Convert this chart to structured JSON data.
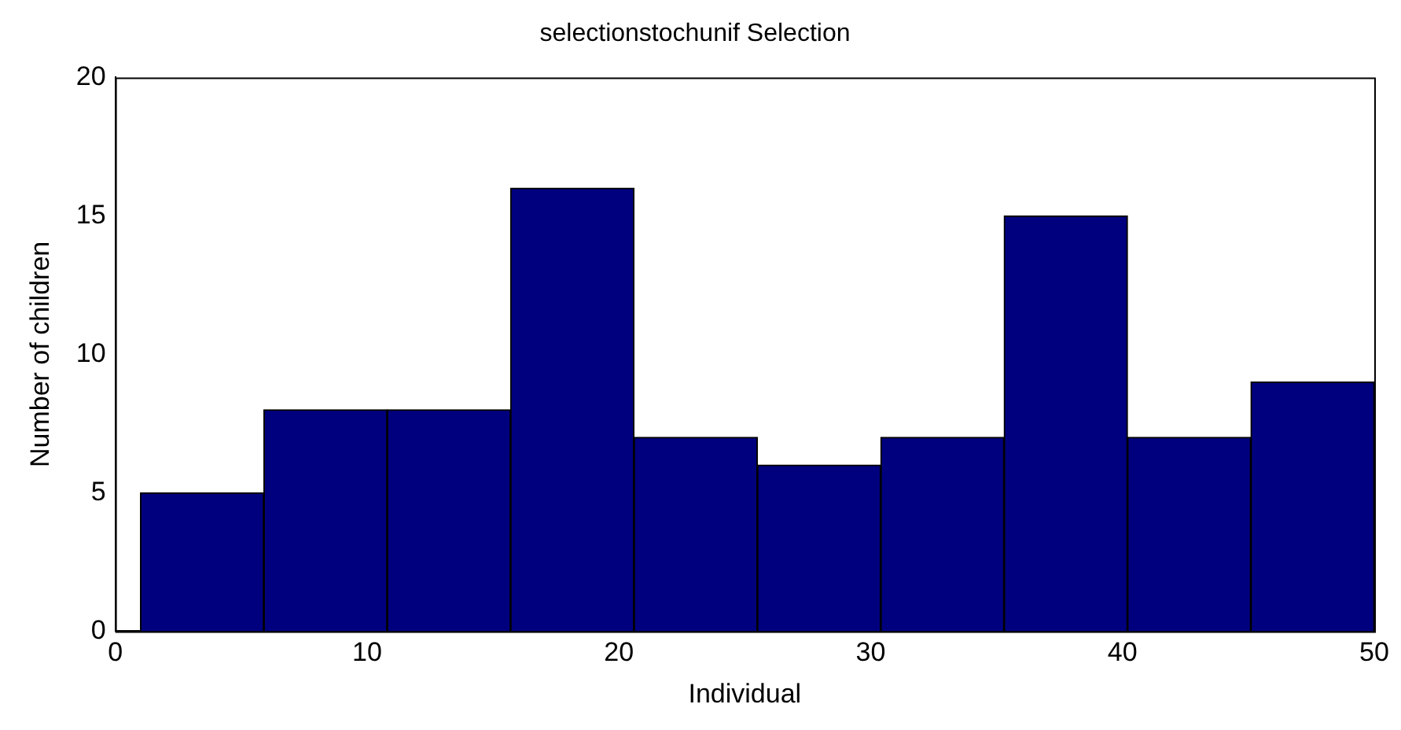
{
  "chart_data": {
    "type": "histogram",
    "title": "selectionstochunif Selection",
    "xlabel": "Individual",
    "ylabel": "Number of children",
    "bins": [
      1,
      5.9,
      10.8,
      15.7,
      20.6,
      25.5,
      30.4,
      35.3,
      40.2,
      45.1,
      50
    ],
    "values": [
      5,
      8,
      8,
      16,
      7,
      6,
      7,
      15,
      7,
      9
    ],
    "color": "#00007f",
    "xlim": [
      0,
      50
    ],
    "xticks": [
      0,
      10,
      20,
      30,
      40,
      50
    ],
    "ylim": [
      0,
      20
    ],
    "yticks": [
      0,
      5,
      10,
      15,
      20
    ],
    "grid": false,
    "legend": false
  }
}
